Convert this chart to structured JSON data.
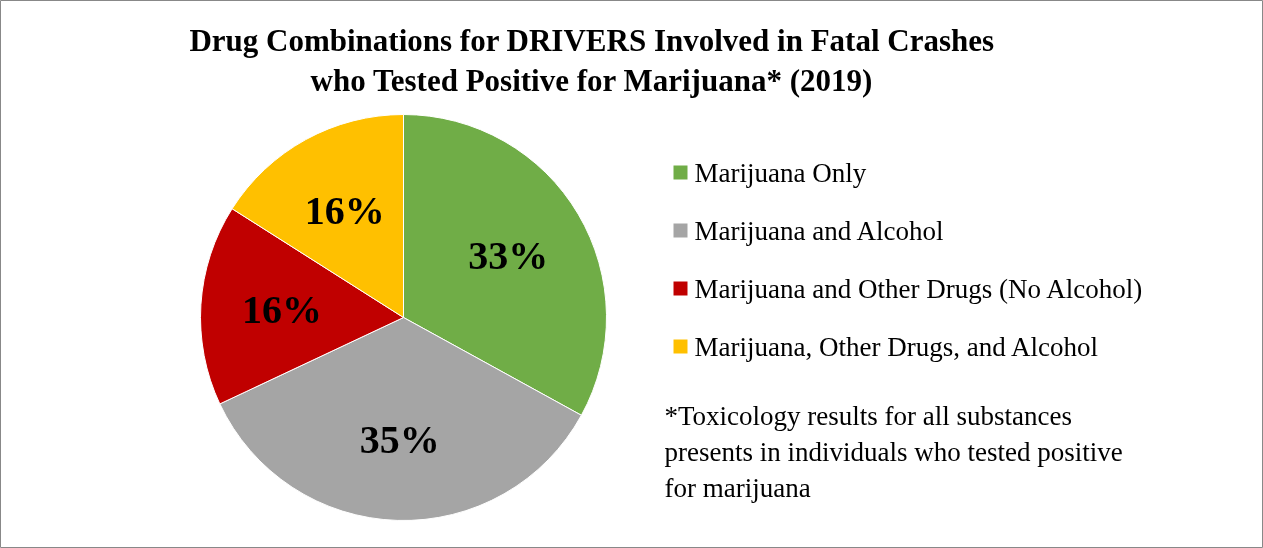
{
  "chart_data": {
    "type": "pie",
    "title": "Drug Combinations for DRIVERS Involved in Fatal Crashes\nwho Tested Positive for Marijuana* (2019)",
    "categories": [
      "Marijuana Only",
      "Marijuana and Alcohol",
      "Marijuana and Other Drugs (No Alcohol)",
      "Marijuana, Other Drugs, and Alcohol"
    ],
    "values": [
      33,
      35,
      16,
      16
    ],
    "colors": [
      "#70ad47",
      "#a5a5a5",
      "#c00000",
      "#ffc000"
    ],
    "value_labels": [
      "33%",
      "35%",
      "16%",
      "16%"
    ],
    "legend": "right",
    "annotations": [
      "*Toxicology results for all substances\npresents in individuals who tested positive\nfor marijuana"
    ]
  }
}
